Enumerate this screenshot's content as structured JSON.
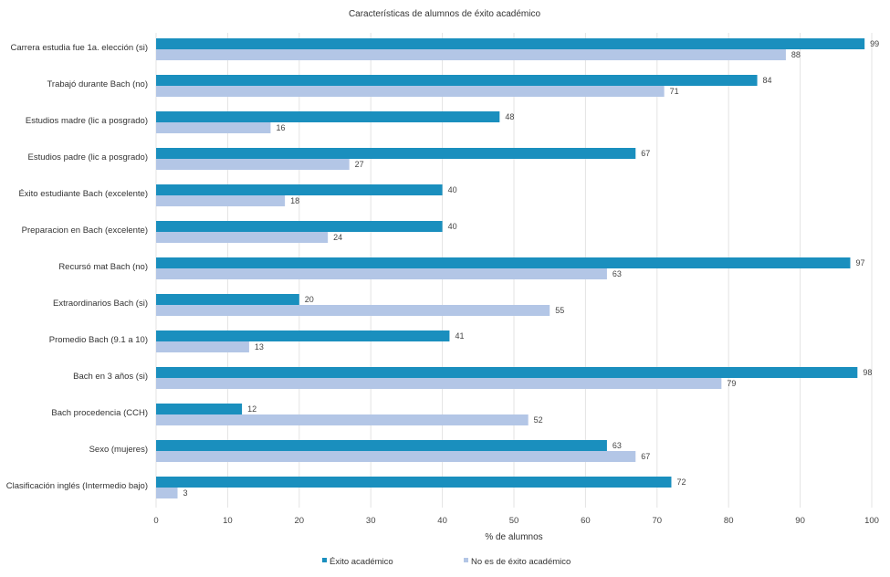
{
  "chart_data": {
    "type": "bar",
    "orientation": "horizontal",
    "title": "Características de alumnos de éxito académico",
    "xlabel": "% de alumnos",
    "ylabel": "",
    "xlim": [
      0,
      100
    ],
    "xticks": [
      0,
      10,
      20,
      30,
      40,
      50,
      60,
      70,
      80,
      90,
      100
    ],
    "grid": true,
    "legend_position": "bottom",
    "categories": [
      "Carrera estudia fue 1a. elección (si)",
      "Trabajó durante Bach (no)",
      "Estudios madre (lic a posgrado)",
      "Estudios padre (lic a posgrado)",
      "Éxito estudiante Bach (excelente)",
      "Preparacion en Bach (excelente)",
      "Recursó mat Bach (no)",
      "Extraordinarios Bach (si)",
      "Promedio Bach (9.1 a 10)",
      "Bach en 3 años (si)",
      "Bach procedencia (CCH)",
      "Sexo (mujeres)",
      "Clasificación inglés (Intermedio bajo)"
    ],
    "series": [
      {
        "name": "Éxito académico",
        "color": "#1a8fbe",
        "values": [
          99,
          84,
          48,
          67,
          40,
          40,
          97,
          20,
          41,
          98,
          12,
          63,
          72
        ]
      },
      {
        "name": "No es de éxito académico",
        "color": "#b3c6e6",
        "values": [
          88,
          71,
          16,
          27,
          18,
          24,
          63,
          55,
          13,
          79,
          52,
          67,
          3
        ]
      }
    ]
  }
}
